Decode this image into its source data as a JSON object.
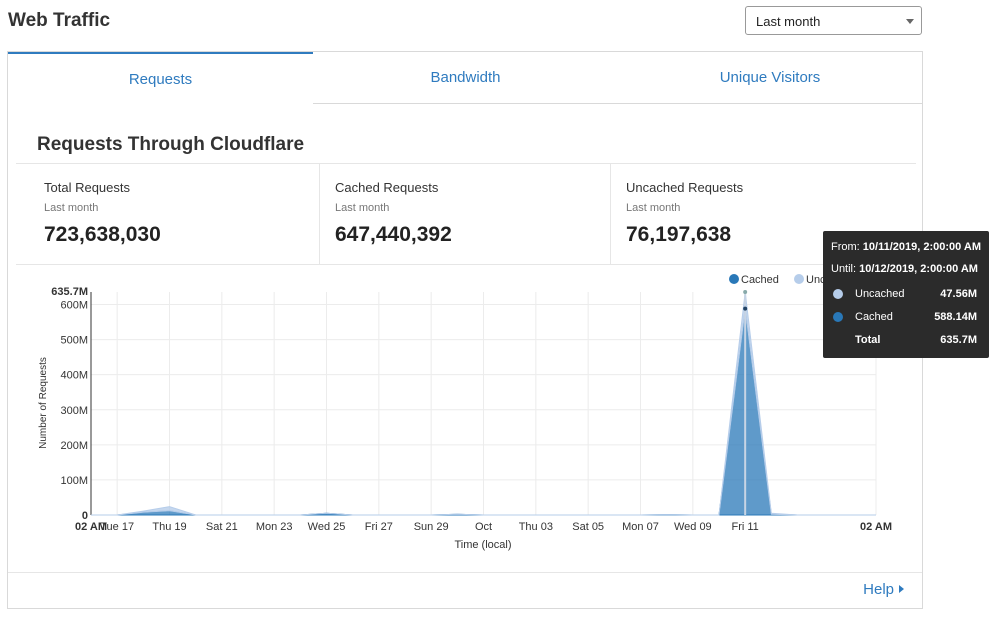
{
  "page": {
    "title": "Web Traffic"
  },
  "range_select": {
    "value": "Last month"
  },
  "tabs": [
    {
      "label": "Requests",
      "active": true
    },
    {
      "label": "Bandwidth",
      "active": false
    },
    {
      "label": "Unique Visitors",
      "active": false
    }
  ],
  "section": {
    "title": "Requests Through Cloudflare"
  },
  "stats": [
    {
      "label": "Total Requests",
      "period": "Last month",
      "value": "723,638,030"
    },
    {
      "label": "Cached Requests",
      "period": "Last month",
      "value": "647,440,392"
    },
    {
      "label": "Uncached Requests",
      "period": "Last month",
      "value": "76,197,638"
    }
  ],
  "tooltip": {
    "from_label": "From:",
    "from_value": "10/11/2019, 2:00:00 AM",
    "until_label": "Until:",
    "until_value": "10/12/2019, 2:00:00 AM",
    "rows": [
      {
        "name": "Uncached",
        "value": "47.56M",
        "color": "#b6cdea"
      },
      {
        "name": "Cached",
        "value": "588.14M",
        "color": "#2978b8"
      },
      {
        "name": "Total",
        "value": "635.7M",
        "color": ""
      }
    ]
  },
  "help": {
    "label": "Help"
  },
  "colors": {
    "accent": "#2f7bbf",
    "cached": "#2978b8",
    "uncached": "#b6cdea"
  },
  "chart_data": {
    "type": "area",
    "stacked": true,
    "ylabel": "Number of Requests",
    "xlabel": "Time (local)",
    "ylim": [
      0,
      635700000
    ],
    "y_max_label": "635.7M",
    "y_ticks": [
      {
        "value": 0,
        "label": "0"
      },
      {
        "value": 100000000,
        "label": "100M"
      },
      {
        "value": 200000000,
        "label": "200M"
      },
      {
        "value": 300000000,
        "label": "300M"
      },
      {
        "value": 400000000,
        "label": "400M"
      },
      {
        "value": 500000000,
        "label": "500M"
      },
      {
        "value": 600000000,
        "label": "600M"
      }
    ],
    "x_range_days": [
      0,
      30
    ],
    "x_ticks": [
      {
        "day": 0,
        "label": "02 AM",
        "bold": true
      },
      {
        "day": 1,
        "label": "Tue 17"
      },
      {
        "day": 3,
        "label": "Thu 19"
      },
      {
        "day": 5,
        "label": "Sat 21"
      },
      {
        "day": 7,
        "label": "Mon 23"
      },
      {
        "day": 9,
        "label": "Wed 25"
      },
      {
        "day": 11,
        "label": "Fri 27"
      },
      {
        "day": 13,
        "label": "Sun 29"
      },
      {
        "day": 15,
        "label": "Oct"
      },
      {
        "day": 17,
        "label": "Thu 03"
      },
      {
        "day": 19,
        "label": "Sat 05"
      },
      {
        "day": 21,
        "label": "Mon 07"
      },
      {
        "day": 23,
        "label": "Wed 09"
      },
      {
        "day": 25,
        "label": "Fri 11"
      },
      {
        "day": 30,
        "label": "02 AM",
        "bold": true
      }
    ],
    "legend": {
      "position": "top-right",
      "items": [
        {
          "name": "Cached",
          "color": "#2978b8"
        },
        {
          "name": "Uncached",
          "color": "#b6cdea"
        }
      ]
    },
    "series": [
      {
        "name": "Cached",
        "values": [
          0,
          0,
          8000000,
          12000000,
          0,
          0,
          0,
          0,
          0,
          5000000,
          0,
          0,
          0,
          0,
          2000000,
          0,
          0,
          0,
          0,
          0,
          0,
          0,
          1000000,
          0,
          0,
          588140000,
          2000000,
          0,
          0,
          0,
          0
        ]
      },
      {
        "name": "Uncached",
        "values": [
          0,
          0,
          3000000,
          12000000,
          0,
          0,
          0,
          0,
          0,
          0,
          0,
          0,
          0,
          0,
          0,
          0,
          0,
          0,
          0,
          0,
          0,
          0,
          0,
          0,
          0,
          47560000,
          3000000,
          0,
          0,
          0,
          0
        ]
      }
    ],
    "highlight_day": 25
  }
}
